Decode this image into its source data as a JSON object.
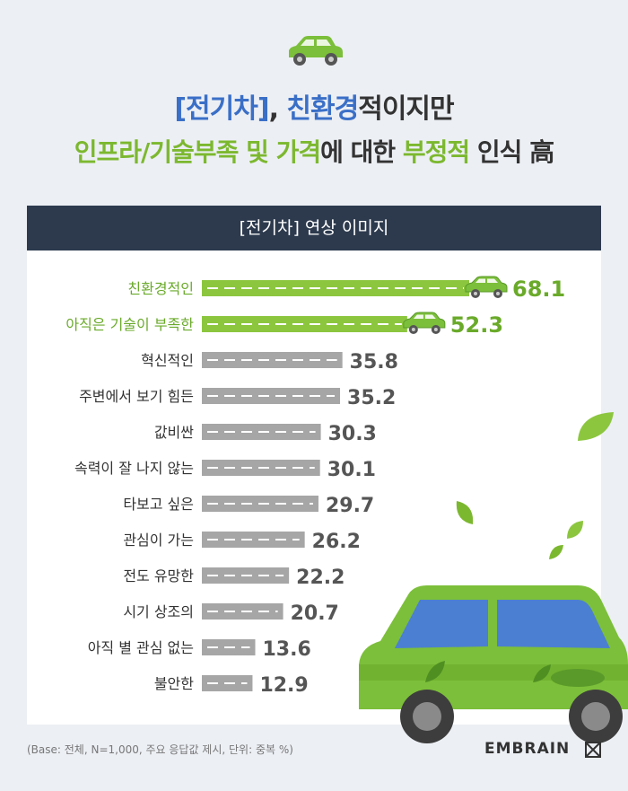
{
  "title_line1": {
    "part1": "[전기차]",
    "part2": ", ",
    "part3": "친환경",
    "part4": "적이지만"
  },
  "title_line2": {
    "part1": "인프라/기술부족 및 가격",
    "part2": "에 대한 ",
    "part3": "부정적",
    "part4": " 인식 高"
  },
  "header": "[전기차] 연상 이미지",
  "footnote": "(Base: 전체, N=1,000, 주요 응답값 제시, 단위: 중복 %)",
  "logo": "EMBRAIN",
  "colors": {
    "highlight_bar": "#8cc63f",
    "highlight_text": "#6aaa2a",
    "normal_bar": "#a6a6a6",
    "normal_text": "#333333",
    "header_bg": "#2d3a4e",
    "title_blue": "#3a6fc7"
  },
  "icons": [
    "car-icon",
    "leaf-icon",
    "embrain-logo-icon"
  ],
  "chart_data": {
    "type": "bar",
    "orientation": "horizontal",
    "title": "[전기차] 연상 이미지",
    "categories": [
      "친환경적인",
      "아직은 기술이 부족한",
      "혁신적인",
      "주변에서 보기 힘든",
      "값비싼",
      "속력이 잘 나지 않는",
      "타보고 싶은",
      "관심이 가는",
      "전도 유망한",
      "시기 상조의",
      "아직 별 관심 없는",
      "불안한"
    ],
    "values": [
      68.1,
      52.3,
      35.8,
      35.2,
      30.3,
      30.1,
      29.7,
      26.2,
      22.2,
      20.7,
      13.6,
      12.9
    ],
    "value_labels": [
      "68.1",
      "52.3",
      "35.8",
      "35.2",
      "30.3",
      "30.1",
      "29.7",
      "26.2",
      "22.2",
      "20.7",
      "13.6",
      "12.9"
    ],
    "highlighted": [
      true,
      true,
      false,
      false,
      false,
      false,
      false,
      false,
      false,
      false,
      false,
      false
    ],
    "xlim": [
      0,
      68.1
    ]
  }
}
